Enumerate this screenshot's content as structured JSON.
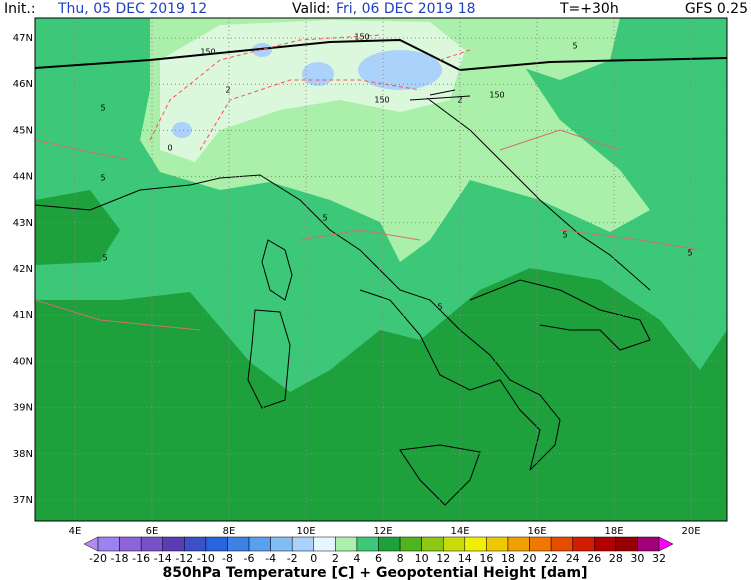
{
  "header": {
    "init_label": "Init.:",
    "init": "Thu, 05 DEC 2019  12",
    "valid_label": "Valid:",
    "valid": "Fri, 06 DEC 2019  18",
    "lead": "T=+30h",
    "model": "GFS 0.25"
  },
  "map": {
    "lat_labels": [
      "47N",
      "46N",
      "45N",
      "44N",
      "43N",
      "42N",
      "41N",
      "40N",
      "39N",
      "38N",
      "37N"
    ],
    "lon_labels": [
      "4E",
      "6E",
      "8E",
      "10E",
      "12E",
      "14E",
      "16E",
      "18E",
      "20E"
    ],
    "contour_labels": [
      150,
      150,
      150,
      150,
      5,
      5,
      5,
      5,
      5,
      5,
      5,
      5,
      0,
      2,
      2
    ]
  },
  "colorbar": {
    "labels": [
      -20,
      -18,
      -16,
      -14,
      -12,
      -10,
      -8,
      -6,
      -4,
      -2,
      0,
      2,
      4,
      6,
      8,
      10,
      12,
      14,
      16,
      18,
      20,
      22,
      24,
      26,
      28,
      30,
      32
    ],
    "colors": [
      "#b48cf0",
      "#9b82f0",
      "#8c64dc",
      "#7850c8",
      "#5a3cb4",
      "#3c50c8",
      "#2864dc",
      "#3c82e6",
      "#5aa0f0",
      "#82bef5",
      "#aad2fa",
      "#e6f5ff",
      "#aaf0aa",
      "#3cc878",
      "#1ea03c",
      "#50b41e",
      "#8cc814",
      "#c8dc0a",
      "#f0f000",
      "#f0c800",
      "#f0a000",
      "#f07800",
      "#e64b00",
      "#d21e00",
      "#b40000",
      "#960000",
      "#a00078",
      "#ff00ff"
    ],
    "title": "850hPa Temperature [C] + Geopotential Height [dam]"
  }
}
